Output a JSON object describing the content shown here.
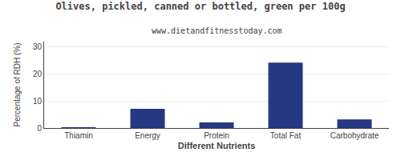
{
  "chart_data": {
    "type": "bar",
    "title": "Olives, pickled, canned or bottled, green per 100g",
    "subtitle": "www.dietandfitnesstoday.com",
    "xlabel": "Different Nutrients",
    "ylabel": "Percentage of RDH (%)",
    "categories": [
      "Thiamin",
      "Energy",
      "Protein",
      "Total Fat",
      "Carbohydrate"
    ],
    "values": [
      0.1,
      7.1,
      2.1,
      24.2,
      3.2
    ],
    "color": "#253882",
    "ylim": [
      0,
      32
    ],
    "yticks": [
      0,
      10,
      20,
      30
    ],
    "grid": true
  }
}
